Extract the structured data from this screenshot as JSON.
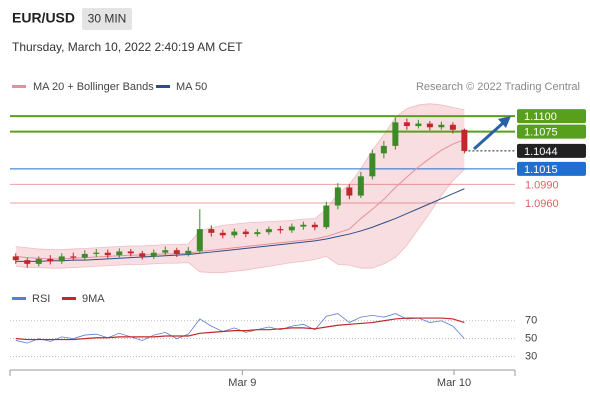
{
  "header": {
    "symbol": "EUR/USD",
    "timeframe": "30 MIN",
    "timestamp": "Thursday, March 10, 2022 2:40:19 AM CET"
  },
  "legend": {
    "ma20": "MA 20 + Bollinger Bands",
    "ma20_color": "#e8909a",
    "ma50": "MA 50",
    "ma50_color": "#2c4f86",
    "credit": "Research © 2022 Trading Central"
  },
  "chart_data": {
    "type": "candlestick",
    "ylim": [
      1.0836,
      1.1134
    ],
    "xlim": [
      -0.5,
      43.4
    ],
    "up_color": "#3e8a2a",
    "down_color": "#c0282c",
    "open": [
      1.0874,
      1.0868,
      1.0862,
      1.087,
      1.0866,
      1.0874,
      1.0872,
      1.0878,
      1.088,
      1.0876,
      1.0882,
      1.0879,
      1.0874,
      1.088,
      1.0884,
      1.0878,
      1.0883,
      1.0918,
      1.0912,
      1.0908,
      1.0914,
      1.091,
      1.0913,
      1.0918,
      1.0916,
      1.0922,
      1.0925,
      1.0921,
      1.0956,
      1.0985,
      1.0972,
      1.1003,
      1.104,
      1.1052,
      1.109,
      1.1084,
      1.1088,
      1.1082,
      1.1086,
      1.1078
    ],
    "high": [
      1.0879,
      1.0872,
      1.0874,
      1.0876,
      1.0879,
      1.088,
      1.0884,
      1.0886,
      1.0885,
      1.0887,
      1.0886,
      1.0883,
      1.0885,
      1.089,
      1.0888,
      1.0889,
      1.095,
      1.0924,
      1.0917,
      1.0919,
      1.0918,
      1.0918,
      1.0922,
      1.0923,
      1.0927,
      1.093,
      1.0929,
      1.0962,
      1.0992,
      1.099,
      1.101,
      1.1046,
      1.106,
      1.1098,
      1.1096,
      1.1094,
      1.1092,
      1.1091,
      1.109,
      1.108
    ],
    "low": [
      1.0862,
      1.0856,
      1.0858,
      1.0861,
      1.0862,
      1.0867,
      1.0868,
      1.0873,
      1.0871,
      1.0872,
      1.0874,
      1.0869,
      1.087,
      1.0876,
      1.0873,
      1.0874,
      1.088,
      1.0906,
      1.0903,
      1.0904,
      1.0905,
      1.0906,
      1.0909,
      1.0911,
      1.0912,
      1.0917,
      1.0916,
      1.0918,
      1.095,
      1.0966,
      1.0968,
      1.0998,
      1.1032,
      1.1046,
      1.1078,
      1.108,
      1.1077,
      1.1078,
      1.1072,
      1.104
    ],
    "close": [
      1.0868,
      1.0862,
      1.087,
      1.0866,
      1.0874,
      1.0872,
      1.0878,
      1.088,
      1.0876,
      1.0882,
      1.0879,
      1.0874,
      1.088,
      1.0884,
      1.0878,
      1.0883,
      1.0918,
      1.0912,
      1.0908,
      1.0914,
      1.091,
      1.0913,
      1.0918,
      1.0916,
      1.0922,
      1.0925,
      1.0921,
      1.0956,
      1.0985,
      1.0972,
      1.1003,
      1.104,
      1.1052,
      1.109,
      1.1084,
      1.1088,
      1.1082,
      1.1086,
      1.1078,
      1.1044
    ],
    "ma20": [
      1.0874,
      1.0872,
      1.0871,
      1.087,
      1.087,
      1.0871,
      1.0872,
      1.0873,
      1.0874,
      1.0875,
      1.0876,
      1.0876,
      1.0877,
      1.0878,
      1.0878,
      1.0879,
      1.0882,
      1.0884,
      1.0886,
      1.0888,
      1.089,
      1.0892,
      1.0894,
      1.0896,
      1.0898,
      1.09,
      1.0902,
      1.0906,
      1.0912,
      1.0918,
      1.0935,
      1.095,
      1.0966,
      1.0985,
      1.1002,
      1.1018,
      1.1032,
      1.1045,
      1.1055,
      1.1062
    ],
    "bb_upper": [
      1.089,
      1.0888,
      1.0886,
      1.0885,
      1.0885,
      1.0886,
      1.0887,
      1.0888,
      1.0889,
      1.089,
      1.0891,
      1.0891,
      1.0892,
      1.0893,
      1.0893,
      1.0894,
      1.0915,
      1.092,
      1.0924,
      1.0926,
      1.0928,
      1.0929,
      1.093,
      1.0931,
      1.0932,
      1.0934,
      1.0935,
      1.095,
      1.0975,
      1.099,
      1.1015,
      1.1045,
      1.107,
      1.1098,
      1.1112,
      1.1118,
      1.112,
      1.1118,
      1.1114,
      1.111
    ],
    "bb_lower": [
      1.0858,
      1.0856,
      1.0856,
      1.0855,
      1.0855,
      1.0856,
      1.0857,
      1.0858,
      1.0859,
      1.086,
      1.0861,
      1.0861,
      1.0862,
      1.0863,
      1.0863,
      1.0864,
      1.0849,
      1.0848,
      1.0848,
      1.085,
      1.0852,
      1.0855,
      1.0858,
      1.0861,
      1.0864,
      1.0866,
      1.0869,
      1.0874,
      1.0861,
      1.086,
      1.0855,
      1.0855,
      1.0862,
      1.0872,
      1.0892,
      1.0918,
      1.0944,
      1.0972,
      1.0996,
      1.1014
    ],
    "ma50": [
      1.0866,
      1.0866,
      1.0866,
      1.0867,
      1.0867,
      1.0868,
      1.0868,
      1.0869,
      1.087,
      1.0871,
      1.0872,
      1.0873,
      1.0874,
      1.0875,
      1.0876,
      1.0877,
      1.0879,
      1.0881,
      1.0883,
      1.0885,
      1.0887,
      1.0889,
      1.0891,
      1.0893,
      1.0895,
      1.0897,
      1.0899,
      1.0902,
      1.0906,
      1.091,
      1.0915,
      1.0921,
      1.0928,
      1.0935,
      1.0943,
      1.0951,
      1.0959,
      1.0967,
      1.0975,
      1.0983
    ],
    "levels": [
      {
        "value": 1.11,
        "label": "1.1100",
        "color": "#58a01c",
        "style": "box"
      },
      {
        "value": 1.1075,
        "label": "1.1075",
        "color": "#58a01c",
        "style": "box"
      },
      {
        "value": 1.1044,
        "label": "1.1044",
        "color": "#222222",
        "style": "current"
      },
      {
        "value": 1.1015,
        "label": "1.1015",
        "color": "#1f6fd0",
        "style": "box"
      },
      {
        "value": 1.099,
        "label": "1.0990",
        "color": "#e06060",
        "style": "text"
      },
      {
        "value": 1.096,
        "label": "1.0960",
        "color": "#e06060",
        "style": "text"
      }
    ],
    "xticks": [
      {
        "value": 19.7,
        "label": "Mar 9"
      },
      {
        "value": 38.1,
        "label": "Mar 10"
      }
    ],
    "rsi": {
      "ylim": [
        15,
        82
      ],
      "yticks": [
        70,
        50,
        30
      ],
      "series": [
        {
          "name": "RSI",
          "color": "#5b7fd0",
          "values": [
            48,
            45,
            50,
            47,
            52,
            50,
            54,
            55,
            51,
            56,
            52,
            48,
            54,
            57,
            50,
            55,
            72,
            64,
            58,
            62,
            57,
            60,
            63,
            60,
            64,
            66,
            60,
            75,
            78,
            68,
            74,
            76,
            74,
            78,
            72,
            73,
            68,
            70,
            64,
            50
          ]
        },
        {
          "name": "9MA",
          "color": "#c0282c",
          "values": [
            50,
            49,
            49,
            49,
            49,
            49,
            50,
            51,
            51,
            52,
            52,
            52,
            52,
            53,
            53,
            53,
            56,
            57,
            58,
            59,
            59,
            60,
            60,
            61,
            62,
            62,
            61,
            63,
            65,
            66,
            67,
            68,
            70,
            72,
            73,
            73,
            73,
            73,
            72,
            68
          ]
        }
      ]
    }
  }
}
